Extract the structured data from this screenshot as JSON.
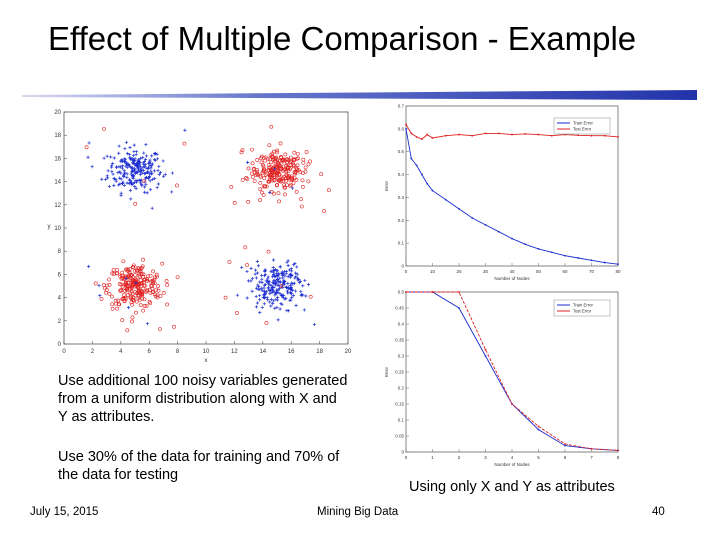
{
  "slide": {
    "title": "Effect of Multiple Comparison - Example",
    "paragraphs": [
      "Use additional 100 noisy variables generated from a uniform distribution along with X and Y as attributes.",
      "Use 30% of the data for training and 70% of the data for testing"
    ],
    "caption": "Using only X and Y as attributes",
    "footer": {
      "date": "July 15, 2015",
      "center": "Mining Big Data",
      "page": "40"
    },
    "colors": {
      "accent": "#2233aa",
      "red": "#e02020",
      "blue": "#1a2bd0"
    }
  },
  "chart_data": [
    {
      "type": "scatter",
      "xlabel": "x",
      "ylabel": "y",
      "xlim": [
        0,
        20
      ],
      "ylim": [
        0,
        20
      ],
      "x_ticks": [
        "0",
        "2",
        "4",
        "6",
        "8",
        "10",
        "12",
        "14",
        "16",
        "18",
        "20"
      ],
      "y_ticks": [
        "0",
        "2",
        "4",
        "6",
        "8",
        "10",
        "12",
        "14",
        "16",
        "18",
        "20"
      ],
      "clusters": [
        {
          "class": "blue",
          "marker": "+",
          "center": [
            5,
            15
          ]
        },
        {
          "class": "red",
          "marker": "o",
          "center": [
            15,
            15
          ]
        },
        {
          "class": "red",
          "marker": "o",
          "center": [
            5,
            5
          ]
        },
        {
          "class": "blue",
          "marker": "+",
          "center": [
            15,
            5
          ]
        }
      ]
    },
    {
      "type": "line",
      "xlabel": "Number of Nodes",
      "ylabel": "Error",
      "x_ticks": [
        "0",
        "10",
        "20",
        "30",
        "40",
        "50",
        "60",
        "70",
        "80"
      ],
      "y_ticks": [
        "0",
        "0.1",
        "0.2",
        "0.3",
        "0.4",
        "0.5",
        "0.6",
        "0.7"
      ],
      "xlim": [
        0,
        80
      ],
      "ylim": [
        0,
        0.7
      ],
      "series": [
        {
          "name": "Train Error",
          "color": "#1a2bd0",
          "x": [
            0,
            2,
            4,
            6,
            8,
            10,
            15,
            20,
            25,
            30,
            35,
            40,
            45,
            50,
            55,
            60,
            65,
            70,
            75,
            80
          ],
          "values": [
            0.6,
            0.47,
            0.44,
            0.4,
            0.36,
            0.33,
            0.29,
            0.25,
            0.21,
            0.18,
            0.15,
            0.12,
            0.095,
            0.075,
            0.06,
            0.045,
            0.035,
            0.025,
            0.015,
            0.008
          ]
        },
        {
          "name": "Test Error",
          "color": "#e02020",
          "x": [
            0,
            2,
            4,
            6,
            8,
            10,
            15,
            20,
            25,
            30,
            35,
            40,
            45,
            50,
            55,
            60,
            65,
            70,
            75,
            80
          ],
          "values": [
            0.62,
            0.58,
            0.565,
            0.555,
            0.575,
            0.56,
            0.57,
            0.575,
            0.57,
            0.58,
            0.58,
            0.575,
            0.578,
            0.575,
            0.57,
            0.575,
            0.572,
            0.57,
            0.57,
            0.565
          ]
        }
      ]
    },
    {
      "type": "line",
      "xlabel": "Number of Nodes",
      "ylabel": "Error",
      "x_ticks": [
        "0",
        "1",
        "2",
        "3",
        "4",
        "5",
        "6",
        "7",
        "8"
      ],
      "y_ticks": [
        "0",
        "0.05",
        "0.1",
        "0.15",
        "0.2",
        "0.25",
        "0.3",
        "0.35",
        "0.4",
        "0.45",
        "0.5"
      ],
      "xlim": [
        0,
        8
      ],
      "ylim": [
        0,
        0.5
      ],
      "series": [
        {
          "name": "Train Error",
          "color": "#1a2bd0",
          "x": [
            0,
            1,
            2,
            3,
            4,
            5,
            6,
            7,
            8
          ],
          "values": [
            0.5,
            0.5,
            0.45,
            0.3,
            0.15,
            0.07,
            0.02,
            0.01,
            0.005
          ]
        },
        {
          "name": "Test Error",
          "color": "#e02020",
          "x": [
            0,
            1,
            2,
            3,
            4,
            5,
            6,
            7,
            8
          ],
          "values": [
            0.5,
            0.5,
            0.5,
            0.32,
            0.15,
            0.08,
            0.025,
            0.01,
            0.005
          ]
        }
      ]
    }
  ]
}
